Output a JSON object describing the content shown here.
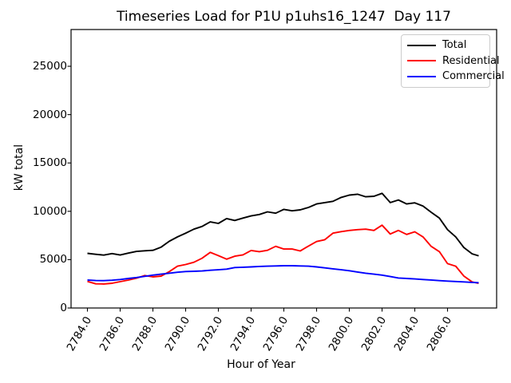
{
  "figure": {
    "background": "#ffffff"
  },
  "chart_data": {
    "type": "line",
    "title": "Timeseries Load for P1U p1uhs16_1247  Day 117",
    "xlabel": "Hour of Year",
    "ylabel": "kW total",
    "grid": false,
    "legend_position": "upper right",
    "xlim": [
      2783.0,
      2809.0
    ],
    "ylim": [
      0,
      28800
    ],
    "xticks": {
      "positions": [
        2784,
        2786,
        2788,
        2790,
        2792,
        2794,
        2796,
        2798,
        2800,
        2802,
        2804,
        2806
      ],
      "labels": [
        "2784.0",
        "2786.0",
        "2788.0",
        "2790.0",
        "2792.0",
        "2794.0",
        "2796.0",
        "2798.0",
        "2800.0",
        "2802.0",
        "2804.0",
        "2806.0"
      ]
    },
    "yticks": {
      "positions": [
        0,
        5000,
        10000,
        15000,
        20000,
        25000
      ],
      "labels": [
        "0",
        "5000",
        "10000",
        "15000",
        "20000",
        "25000"
      ]
    },
    "x": [
      2784.0,
      2784.5,
      2785.0,
      2785.5,
      2786.0,
      2786.5,
      2787.0,
      2787.5,
      2788.0,
      2788.5,
      2789.0,
      2789.5,
      2790.0,
      2790.5,
      2791.0,
      2791.5,
      2792.0,
      2792.5,
      2793.0,
      2793.5,
      2794.0,
      2794.5,
      2795.0,
      2795.5,
      2796.0,
      2796.5,
      2797.0,
      2797.5,
      2798.0,
      2798.5,
      2799.0,
      2799.5,
      2800.0,
      2800.5,
      2801.0,
      2801.5,
      2802.0,
      2802.5,
      2803.0,
      2803.5,
      2804.0,
      2804.5,
      2805.0,
      2805.5,
      2806.0,
      2806.5,
      2807.0,
      2807.5,
      2807.9
    ],
    "series": [
      {
        "name": "Total",
        "color": "#000000",
        "values": [
          5650,
          5550,
          5470,
          5630,
          5480,
          5680,
          5850,
          5920,
          5970,
          6300,
          6900,
          7350,
          7740,
          8150,
          8430,
          8900,
          8750,
          9250,
          9050,
          9300,
          9520,
          9670,
          9940,
          9800,
          10200,
          10050,
          10150,
          10400,
          10760,
          10900,
          11030,
          11440,
          11680,
          11770,
          11500,
          11550,
          11855,
          10900,
          11170,
          10760,
          10880,
          10550,
          9900,
          9300,
          8100,
          7350,
          6250,
          5600,
          5400
        ]
      },
      {
        "name": "Residential",
        "color": "#ff0000",
        "values": [
          2750,
          2500,
          2480,
          2560,
          2725,
          2890,
          3085,
          3355,
          3215,
          3300,
          3765,
          4320,
          4500,
          4730,
          5140,
          5750,
          5410,
          5050,
          5355,
          5500,
          5950,
          5830,
          5965,
          6375,
          6100,
          6100,
          5900,
          6400,
          6870,
          7060,
          7740,
          7900,
          8020,
          8100,
          8155,
          8020,
          8565,
          7650,
          8020,
          7610,
          7880,
          7350,
          6375,
          5825,
          4590,
          4320,
          3300,
          2700,
          2550
        ]
      },
      {
        "name": "Commercial",
        "color": "#0000ff",
        "values": [
          2900,
          2840,
          2830,
          2870,
          2950,
          3050,
          3150,
          3280,
          3400,
          3500,
          3600,
          3700,
          3770,
          3800,
          3830,
          3900,
          3950,
          4020,
          4180,
          4220,
          4250,
          4300,
          4320,
          4350,
          4370,
          4370,
          4350,
          4320,
          4250,
          4150,
          4050,
          3950,
          3850,
          3720,
          3600,
          3500,
          3400,
          3250,
          3100,
          3050,
          3000,
          2950,
          2900,
          2830,
          2780,
          2740,
          2700,
          2650,
          2620
        ]
      }
    ]
  }
}
